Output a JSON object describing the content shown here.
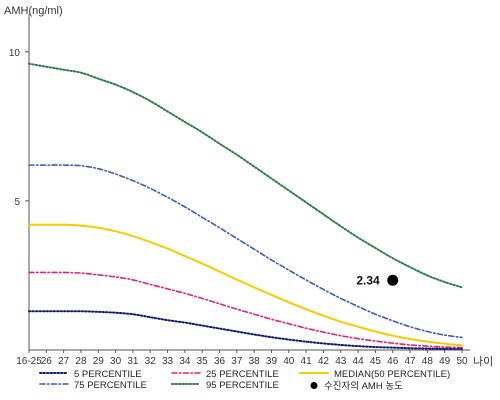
{
  "chart_data": {
    "type": "line",
    "ylabel": "AMH(ng/ml)",
    "xlabel": "나이",
    "categories": [
      "16-25",
      "26",
      "27",
      "28",
      "29",
      "30",
      "31",
      "32",
      "33",
      "34",
      "35",
      "36",
      "37",
      "38",
      "39",
      "40",
      "41",
      "42",
      "43",
      "44",
      "45",
      "46",
      "47",
      "48",
      "49",
      "50"
    ],
    "ylim": [
      0,
      11
    ],
    "yticks": [
      "10",
      "5"
    ],
    "ytick_values": [
      10,
      5
    ],
    "grid": false,
    "legend_position": "bottom",
    "series": [
      {
        "name": "5 PERCENTILE",
        "color": "#0d1a6e",
        "style": "dotted",
        "values": [
          1.3,
          1.3,
          1.3,
          1.3,
          1.28,
          1.25,
          1.2,
          1.1,
          1.0,
          0.92,
          0.82,
          0.72,
          0.62,
          0.52,
          0.43,
          0.35,
          0.28,
          0.22,
          0.17,
          0.13,
          0.1,
          0.08,
          0.06,
          0.05,
          0.04,
          0.04
        ]
      },
      {
        "name": "25 PERCENTILE",
        "color": "#e0207a",
        "style": "dashdot",
        "values": [
          2.6,
          2.6,
          2.6,
          2.58,
          2.52,
          2.45,
          2.35,
          2.2,
          2.05,
          1.9,
          1.73,
          1.55,
          1.37,
          1.2,
          1.03,
          0.88,
          0.73,
          0.6,
          0.48,
          0.38,
          0.3,
          0.23,
          0.17,
          0.13,
          0.1,
          0.08
        ]
      },
      {
        "name": "MEDIAN(50 PERCENTILE)",
        "color": "#f5cc00",
        "style": "solid",
        "values": [
          4.2,
          4.2,
          4.2,
          4.17,
          4.1,
          3.98,
          3.82,
          3.62,
          3.4,
          3.15,
          2.9,
          2.63,
          2.36,
          2.1,
          1.85,
          1.6,
          1.37,
          1.15,
          0.95,
          0.78,
          0.62,
          0.48,
          0.37,
          0.28,
          0.21,
          0.16
        ]
      },
      {
        "name": "75 PERCENTILE",
        "color": "#3a5ab8",
        "style": "dashdot",
        "values": [
          6.2,
          6.2,
          6.2,
          6.18,
          6.08,
          5.9,
          5.68,
          5.42,
          5.12,
          4.8,
          4.45,
          4.1,
          3.74,
          3.38,
          3.02,
          2.68,
          2.35,
          2.03,
          1.73,
          1.46,
          1.2,
          0.98,
          0.78,
          0.62,
          0.5,
          0.42
        ]
      },
      {
        "name": "95 PERCENTILE",
        "color": "#2e7d4a",
        "style": "dotted",
        "values": [
          9.6,
          9.5,
          9.4,
          9.3,
          9.1,
          8.9,
          8.65,
          8.35,
          8.0,
          7.65,
          7.3,
          6.92,
          6.55,
          6.15,
          5.75,
          5.35,
          4.95,
          4.55,
          4.15,
          3.77,
          3.42,
          3.08,
          2.78,
          2.5,
          2.28,
          2.1
        ]
      }
    ],
    "marker": {
      "name": "수진자의 AMH 농도",
      "x": "46",
      "y": 2.34,
      "label": "2.34",
      "color": "#000000"
    }
  },
  "legend_order": [
    "5 PERCENTILE",
    "25 PERCENTILE",
    "MEDIAN(50 PERCENTILE)",
    "75 PERCENTILE",
    "95 PERCENTILE",
    "수진자의 AMH 농도"
  ]
}
